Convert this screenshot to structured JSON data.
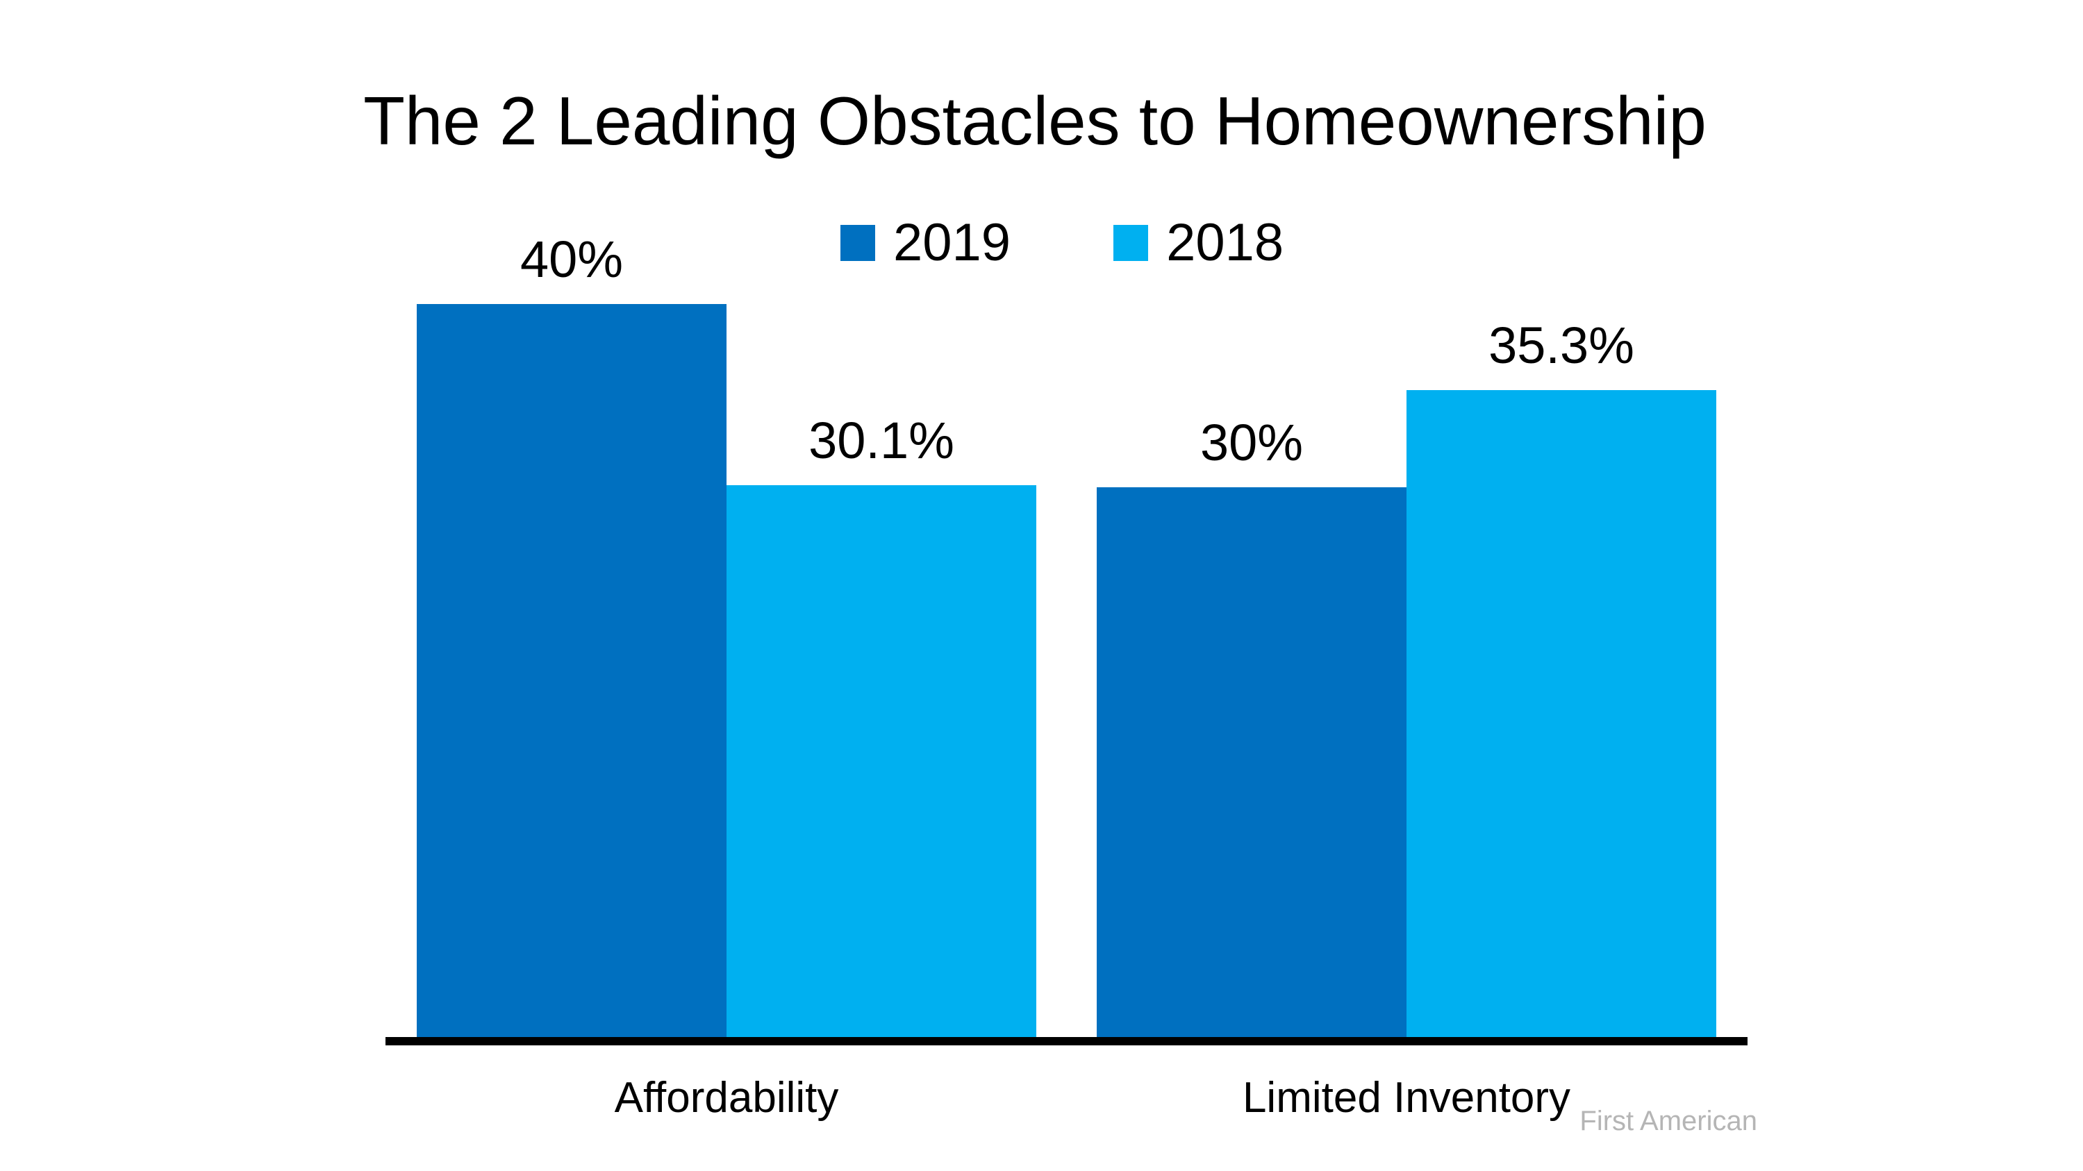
{
  "title": "The 2 Leading Obstacles to Homeownership",
  "watermark": "First American",
  "colors": {
    "series_2019": "#0070C0",
    "series_2018": "#00B0F0",
    "axis": "#000000",
    "text": "#000000",
    "watermark": "#B5B5B5",
    "background": "#FFFFFF"
  },
  "legend": {
    "items": [
      {
        "label": "2019",
        "swatch": "#0070C0"
      },
      {
        "label": "2018",
        "swatch": "#00B0F0"
      }
    ]
  },
  "chart_data": {
    "type": "bar",
    "title": "The 2 Leading Obstacles to Homeownership",
    "categories": [
      "Affordability",
      "Limited Inventory"
    ],
    "series": [
      {
        "name": "2019",
        "color": "#0070C0",
        "values": [
          40,
          30
        ],
        "value_labels": [
          "40%",
          "30%"
        ]
      },
      {
        "name": "2018",
        "color": "#00B0F0",
        "values": [
          30.1,
          35.3
        ],
        "value_labels": [
          "30.1%",
          "35.3%"
        ]
      }
    ],
    "xlabel": "",
    "ylabel": "",
    "ylim": [
      0,
      45
    ],
    "grid": false,
    "y_axis_visible": false,
    "legend_position": "top-center",
    "value_label_format": "percent",
    "annotation": "First American"
  }
}
